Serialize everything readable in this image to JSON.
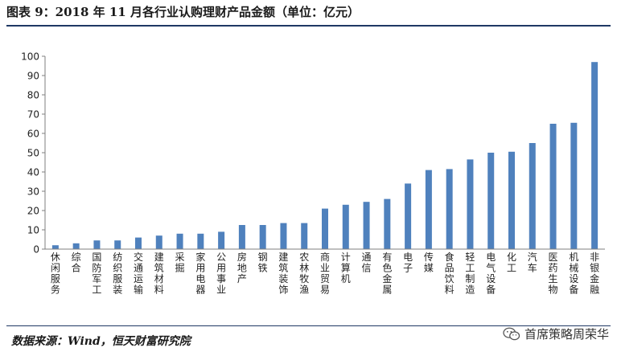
{
  "title": "图表 9：2018 年 11 月各行业认购理财产品金额（单位：亿元）",
  "source": "数据来源：Wind，恒天财富研究院",
  "watermark": "首席策略周荣华",
  "chart_data": {
    "type": "bar",
    "categories": [
      "休闲服务",
      "综合",
      "国防军工",
      "纺织服装",
      "交通运输",
      "建筑材料",
      "采掘",
      "家用电器",
      "公用事业",
      "房地产",
      "钢铁",
      "建筑装饰",
      "农林牧渔",
      "商业贸易",
      "计算机",
      "通信",
      "有色金属",
      "电子",
      "传媒",
      "食品饮料",
      "轻工制造",
      "电气设备",
      "化工",
      "汽车",
      "医药生物",
      "机械设备",
      "非银金融"
    ],
    "values": [
      2,
      3,
      4.5,
      4.5,
      6,
      7,
      8,
      8,
      9,
      12.5,
      12.5,
      13.5,
      13.5,
      21,
      23,
      24.5,
      26,
      34,
      41,
      41.5,
      46.5,
      50,
      50.5,
      55,
      65,
      65.5,
      97
    ],
    "ylim": [
      0,
      100
    ],
    "yticks": [
      0,
      10,
      20,
      30,
      40,
      50,
      60,
      70,
      80,
      90,
      100
    ],
    "bar_color": "#4f81bd",
    "grid": false,
    "legend": "none"
  }
}
